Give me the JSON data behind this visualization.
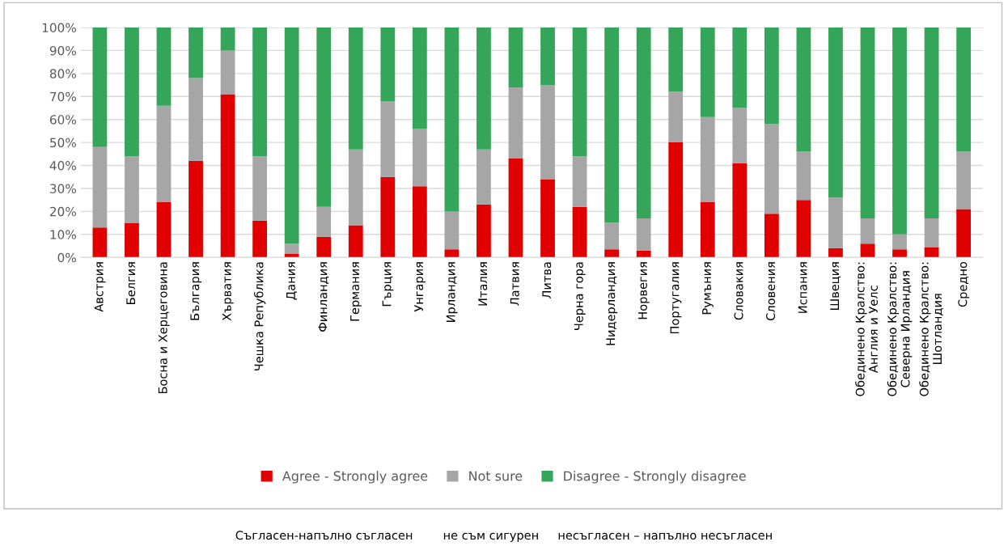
{
  "chart_data": {
    "type": "bar",
    "stacked": true,
    "categories": [
      "Австрия",
      "Белгия",
      "Босна и Херцеговина",
      "България",
      "Хърватия",
      "Чешка Република",
      "Дания",
      "Финландия",
      "Германия",
      "Гърция",
      "Унгария",
      "Ирландия",
      "Италия",
      "Латвия",
      "Литва",
      "Черна гора",
      "Нидерландия",
      "Норвегия",
      "Португалия",
      "Румъния",
      "Словакия",
      "Словения",
      "Испания",
      "Швеция",
      "Обединено Кралство:\nАнглия и Уелс",
      "Обединено Кралство:\nСеверна Ирландия",
      "Обединено Кралство:\nШотландия",
      "Средно"
    ],
    "series": [
      {
        "name": "Agree - Strongly agree",
        "color": "#e00000",
        "values": [
          13,
          15,
          24,
          42,
          71,
          16,
          1.5,
          9,
          14,
          35,
          31,
          3.5,
          23,
          43,
          34,
          22,
          3.5,
          3,
          50,
          24,
          41,
          19,
          25,
          4,
          6,
          3.5,
          4.5,
          21
        ]
      },
      {
        "name": "Not sure",
        "color": "#a6a6a6",
        "values": [
          35,
          29,
          42,
          36,
          19,
          28,
          4.5,
          13,
          33,
          33,
          25,
          16.5,
          24,
          31,
          41,
          22,
          11.5,
          14,
          22,
          37,
          24,
          39,
          21,
          22,
          11,
          6.5,
          12.5,
          25
        ]
      },
      {
        "name": "Disagree - Strongly disagree",
        "color": "#35a55a",
        "values": [
          52,
          56,
          34,
          22,
          10,
          56,
          94,
          78,
          53,
          32,
          44,
          80,
          53,
          26,
          25,
          56,
          85,
          83,
          28,
          39,
          35,
          42,
          54,
          74,
          83,
          90,
          83,
          54
        ]
      }
    ],
    "ylim": [
      0,
      100
    ],
    "yticks": [
      {
        "value": 0,
        "label": "0%"
      },
      {
        "value": 10,
        "label": "10%"
      },
      {
        "value": 20,
        "label": "20%"
      },
      {
        "value": 30,
        "label": "30%"
      },
      {
        "value": 40,
        "label": "40%"
      },
      {
        "value": 50,
        "label": "50%"
      },
      {
        "value": 60,
        "label": "60%"
      },
      {
        "value": 70,
        "label": "70%"
      },
      {
        "value": 80,
        "label": "80%"
      },
      {
        "value": 90,
        "label": "90%"
      },
      {
        "value": 100,
        "label": "100%"
      }
    ],
    "grid": "y",
    "legend": "bottom",
    "annotations": [
      "Съгласен-напълно съгласен        не съм сигурен     несъгласен – напълно несъгласен"
    ]
  }
}
